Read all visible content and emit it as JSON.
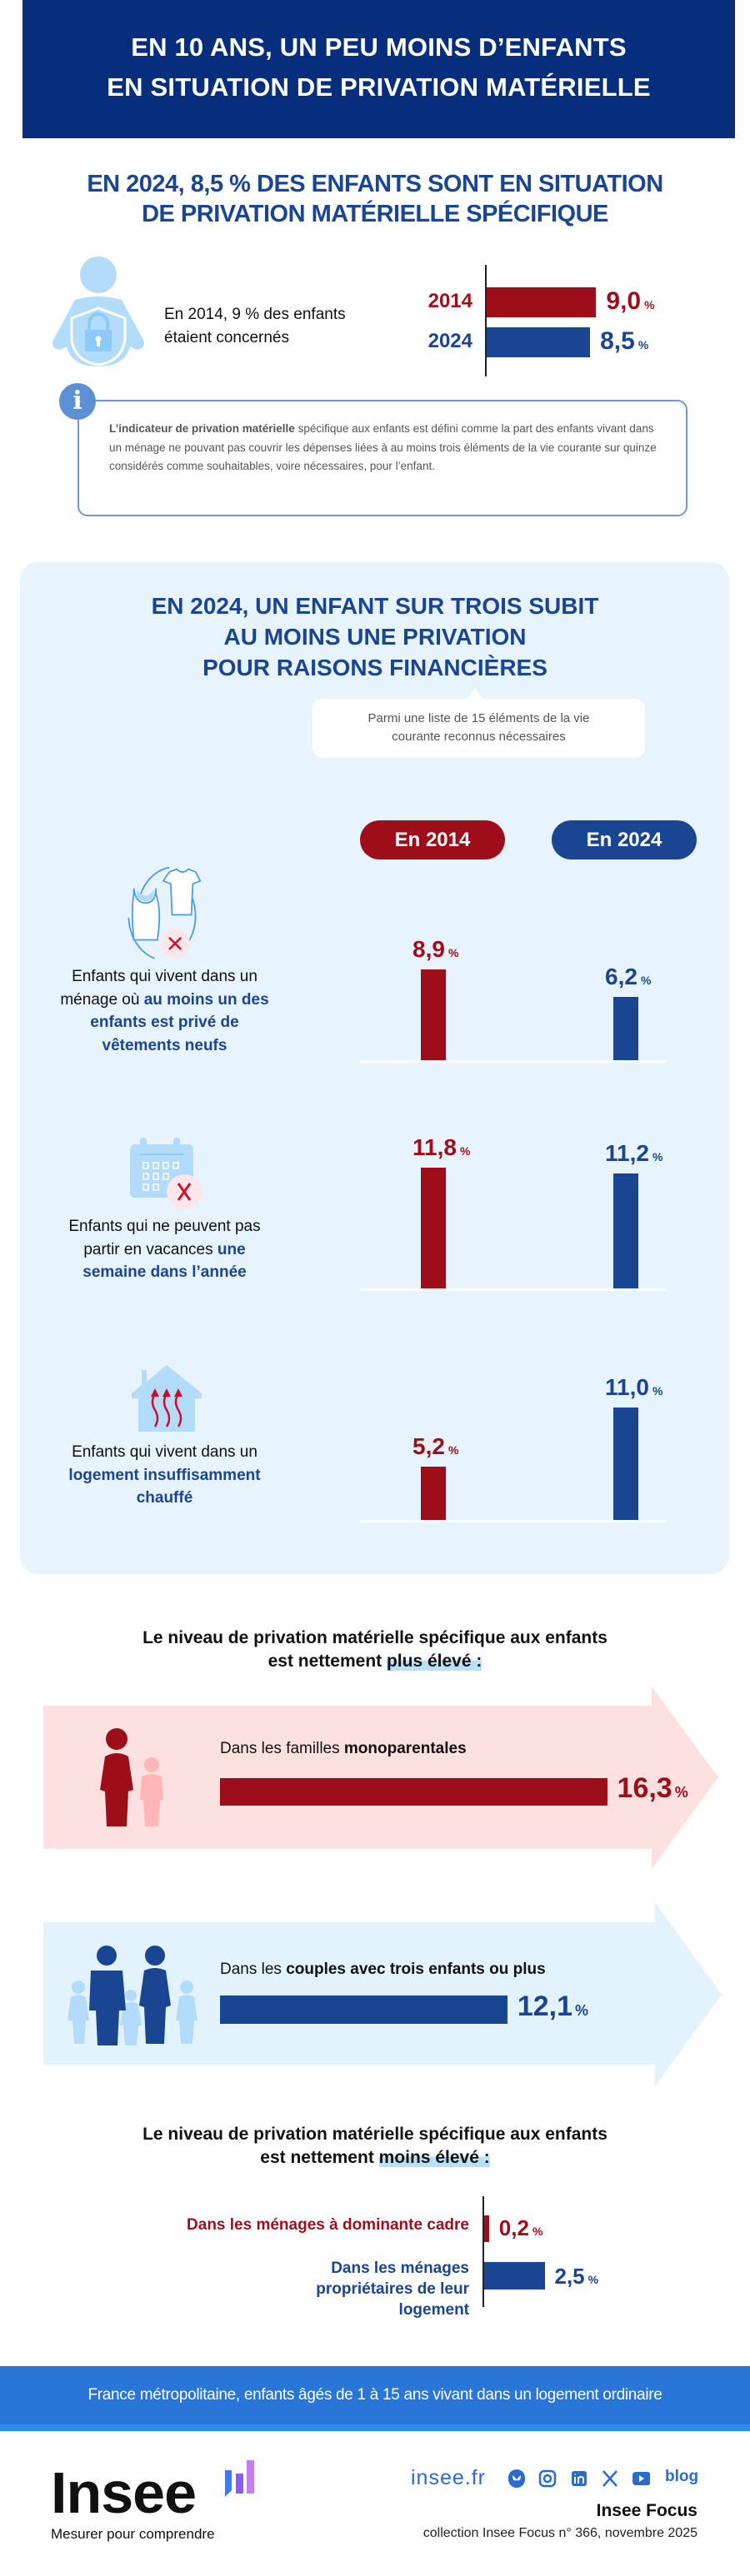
{
  "header": {
    "line1": "EN 10 ANS, UN PEU MOINS D’ENFANTS",
    "line2": "EN SITUATION DE PRIVATION MATÉRIELLE"
  },
  "section1": {
    "title_line1": "EN 2024, 8,5 % DES ENFANTS SONT EN SITUATION",
    "title_line2": "DE PRIVATION MATÉRIELLE SPÉCIFIQUE",
    "note_line1": "En 2014, 9 % des enfants",
    "note_line2": "étaient concernés"
  },
  "info": {
    "icon": "info-icon",
    "bold": "L’indicateur de privation matérielle",
    "text": " spécifique aux enfants est défini comme la part des enfants vivant dans un ménage ne pouvant pas couvrir les dépenses liées à au moins trois éléments de la vie courante sur quinze considérés comme souhaitables, voire nécessaires, pour l’enfant."
  },
  "section2": {
    "title_line1": "EN 2024, UN ENFANT SUR TROIS SUBIT",
    "title_line2": "AU MOINS UNE PRIVATION",
    "title_line3": "POUR RAISONS FINANCIÈRES",
    "callout_line1": "Parmi une liste de 15 éléments de la vie",
    "callout_line2": "courante reconnus nécessaires"
  },
  "section4": {
    "title_line1": "Le niveau de privation matérielle spécifique aux enfants",
    "title_pre": "est nettement ",
    "title_hl": "plus élevé :"
  },
  "section5": {
    "title_line1": "Le niveau de privation matérielle spécifique aux enfants",
    "title_pre": "est nettement ",
    "title_hl": "moins élevé :"
  },
  "scope": "France métropolitaine, enfants âgés de 1 à 15 ans vivant dans un logement ordinaire",
  "footer": {
    "logo": "Insee",
    "tagline": "Mesurer pour comprendre",
    "site": "insee.fr",
    "social": [
      "bluesky",
      "instagram",
      "linkedin",
      "x",
      "youtube",
      "blog"
    ],
    "blog_label": "blog",
    "collection_title": "Insee Focus",
    "collection": "collection Insee Focus n° 366, novembre 2025"
  },
  "colors": {
    "red": "#9e0e1a",
    "blue": "#1a4592",
    "header": "#062e7c",
    "band": "#2a75d8",
    "panel": "#e7f3fd"
  },
  "unit": "%",
  "chart_data": [
    {
      "type": "bar",
      "orientation": "horizontal",
      "categories": [
        "2014",
        "2024"
      ],
      "values": [
        9.0,
        8.5
      ],
      "value_labels": [
        "9,0",
        "8,5"
      ],
      "unit": "%",
      "colors": [
        "#9e0e1a",
        "#1a4592"
      ]
    },
    {
      "type": "bar",
      "orientation": "vertical",
      "series": [
        {
          "name": "En 2014",
          "color": "#9e0e1a"
        },
        {
          "name": "En 2024",
          "color": "#1a4592"
        }
      ],
      "groups": [
        {
          "icon": "clothes-crossed-icon",
          "label_pre": "Enfants qui vivent dans un ménage où ",
          "label_strong": "au moins un des enfants est privé de vêtements neufs",
          "values": [
            8.9,
            6.2
          ],
          "value_labels": [
            "8,9",
            "6,2"
          ]
        },
        {
          "icon": "calendar-crossed-icon",
          "label_pre": "Enfants qui ne peuvent pas partir en vacances ",
          "label_strong": "une semaine dans l’année",
          "values": [
            11.8,
            11.2
          ],
          "value_labels": [
            "11,8",
            "11,2"
          ]
        },
        {
          "icon": "cold-house-icon",
          "label_pre": "Enfants qui vivent dans un ",
          "label_strong": "logement insuffisamment chauffé",
          "values": [
            5.2,
            11.0
          ],
          "value_labels": [
            "5,2",
            "11,0"
          ]
        }
      ],
      "unit": "%"
    },
    {
      "type": "bar",
      "orientation": "horizontal",
      "categories": [
        {
          "pre": "Dans les familles ",
          "strong": "monoparentales"
        },
        {
          "pre": "Dans les ",
          "strong": "couples avec trois enfants ou plus"
        }
      ],
      "values": [
        16.3,
        12.1
      ],
      "value_labels": [
        "16,3",
        "12,1"
      ],
      "unit": "%",
      "colors": [
        "#9e0e1a",
        "#1a4592"
      ]
    },
    {
      "type": "bar",
      "orientation": "horizontal",
      "categories": [
        "Dans les ménages à dominante cadre",
        "Dans les ménages propriétaires de leur logement"
      ],
      "values": [
        0.2,
        2.5
      ],
      "value_labels": [
        "0,2",
        "2,5"
      ],
      "unit": "%",
      "colors": [
        "#9e0e1a",
        "#1a4592"
      ]
    }
  ]
}
